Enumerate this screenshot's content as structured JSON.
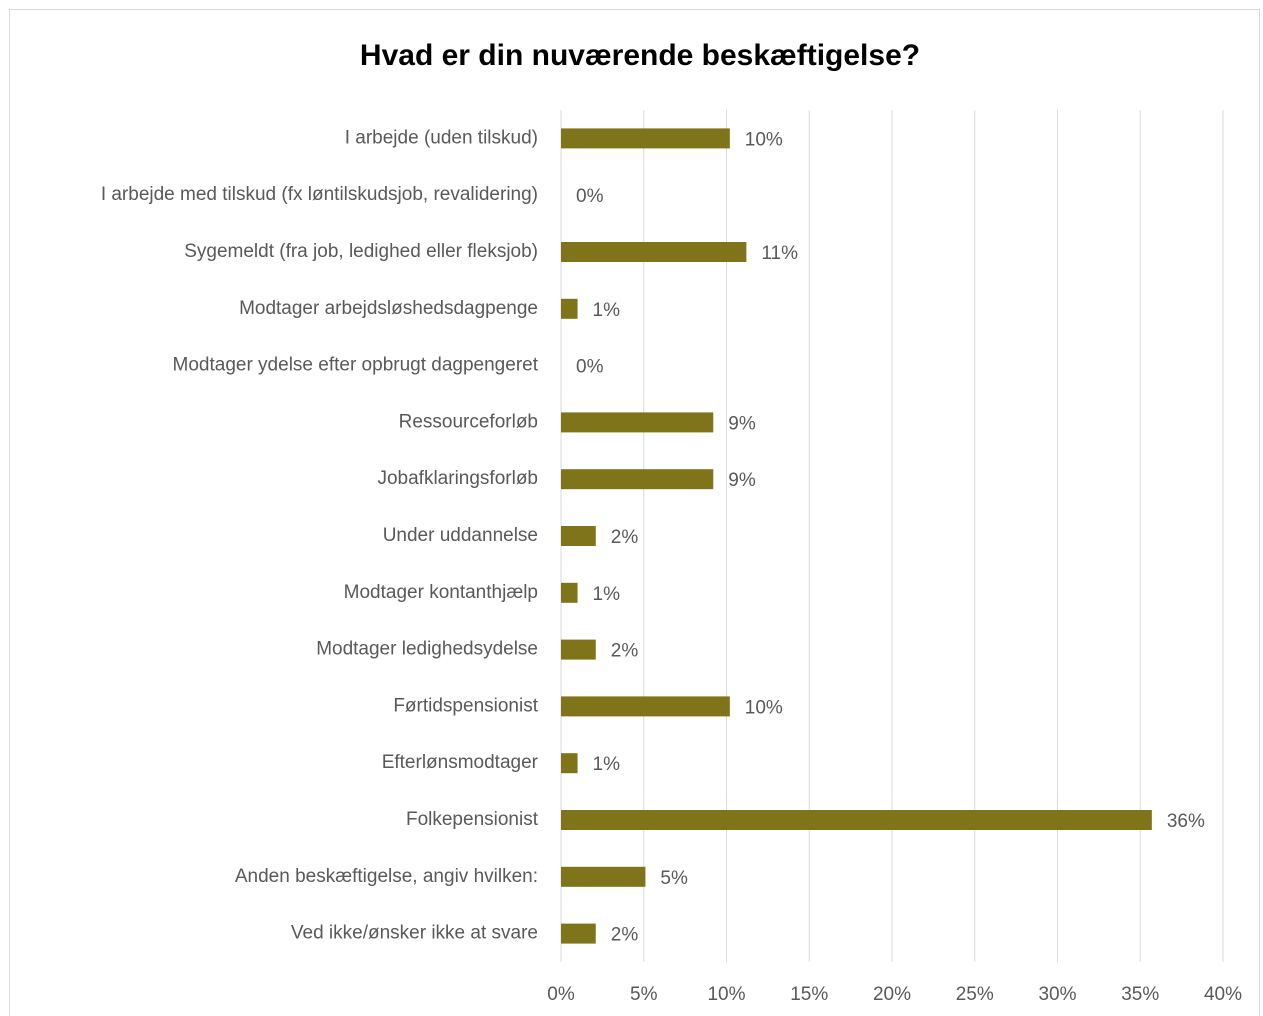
{
  "chart_data": {
    "type": "bar",
    "orientation": "horizontal",
    "title": "Hvad er din nuværende beskæftigelse?",
    "categories": [
      "I arbejde (uden tilskud)",
      "I arbejde med tilskud (fx løntilskudsjob, revalidering)",
      "Sygemeldt (fra job, ledighed eller fleksjob)",
      "Modtager arbejdsløshedsdagpenge",
      "Modtager ydelse efter opbrugt dagpengeret",
      "Ressourceforløb",
      "Jobafklaringsforløb",
      "Under uddannelse",
      "Modtager kontanthjælp",
      "Modtager ledighedsydelse",
      "Førtidspensionist",
      "Efterlønsmodtager",
      "Folkepensionist",
      "Anden beskæftigelse, angiv hvilken:",
      "Ved ikke/ønsker ikke at svare"
    ],
    "values": [
      10.2,
      0,
      11.2,
      1.0,
      0,
      9.2,
      9.2,
      2.1,
      1.0,
      2.1,
      10.2,
      1.0,
      35.7,
      5.1,
      2.1
    ],
    "value_labels": [
      "10%",
      "0%",
      "11%",
      "1%",
      "0%",
      "9%",
      "9%",
      "2%",
      "1%",
      "2%",
      "10%",
      "1%",
      "36%",
      "5%",
      "2%"
    ],
    "color": "#7f7419",
    "xlim": [
      0,
      40
    ],
    "xticks": [
      {
        "value": 0,
        "label": "0%"
      },
      {
        "value": 5,
        "label": "5%"
      },
      {
        "value": 10,
        "label": "10%"
      },
      {
        "value": 15,
        "label": "15%"
      },
      {
        "value": 20,
        "label": "20%"
      },
      {
        "value": 25,
        "label": "25%"
      },
      {
        "value": 30,
        "label": "30%"
      },
      {
        "value": 35,
        "label": "35%"
      },
      {
        "value": 40,
        "label": "40%"
      }
    ],
    "grid": true
  }
}
